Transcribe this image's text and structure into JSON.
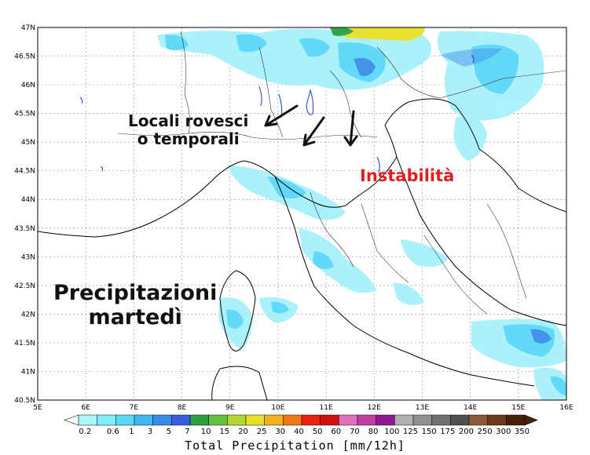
{
  "map": {
    "lat_labels": [
      "47N",
      "46.5N",
      "46N",
      "45.5N",
      "45N",
      "44.5N",
      "44N",
      "43.5N",
      "43N",
      "42.5N",
      "42N",
      "41.5N",
      "41N",
      "40.5N"
    ],
    "lon_labels": [
      "5E",
      "6E",
      "7E",
      "8E",
      "9E",
      "10E",
      "11E",
      "12E",
      "13E",
      "14E",
      "15E",
      "16E"
    ]
  },
  "annotations": {
    "locali_line1": "Locali rovesci",
    "locali_line2": "o temporali",
    "instabilita": "Instabilità",
    "precip_line1": "Precipitazioni",
    "precip_line2": "martedì"
  },
  "colorbar": {
    "title": "Total Precipitation [mm/12h]",
    "labels": [
      "0.2",
      "0.6",
      "1",
      "3",
      "5",
      "7",
      "10",
      "15",
      "20",
      "25",
      "30",
      "40",
      "50",
      "60",
      "70",
      "80",
      "100",
      "125",
      "150",
      "175",
      "200",
      "250",
      "300",
      "350"
    ],
    "colors": [
      "#aaf5ff",
      "#80eeff",
      "#5ad8f8",
      "#43b8f0",
      "#3a8ee8",
      "#3a5ee0",
      "#2aa040",
      "#60c040",
      "#b0d830",
      "#e8e028",
      "#f0b020",
      "#f07818",
      "#f02010",
      "#d01010",
      "#e070c0",
      "#c040a0",
      "#901890",
      "#b0b0b0",
      "#909090",
      "#707070",
      "#505050",
      "#8a5a3a",
      "#6a3a1a",
      "#4a2008"
    ]
  }
}
